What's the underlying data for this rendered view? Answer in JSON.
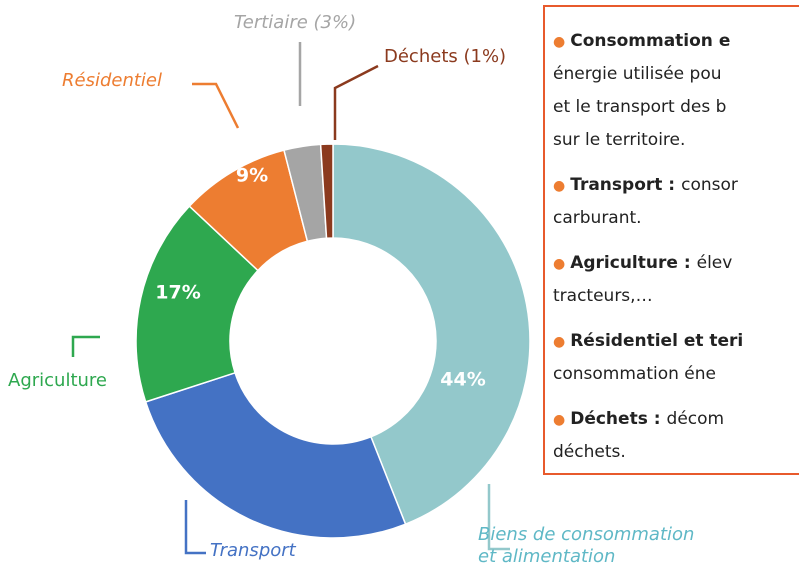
{
  "chart_data": {
    "type": "donut",
    "categories": [
      "Biens de consommation\net alimentation",
      "Transport",
      "Agriculture",
      "Résidentiel",
      "Tertiaire (3%)",
      "Déchets (1%)"
    ],
    "values": [
      44,
      26,
      17,
      9,
      3,
      1
    ],
    "value_labels": [
      "44%",
      null,
      "17%",
      "9%",
      null,
      null
    ],
    "colors": [
      "#93c8cb",
      "#4472c4",
      "#2ea84f",
      "#ed7d31",
      "#a5a5a5",
      "#8b3a1e"
    ]
  },
  "text_box": {
    "items": [
      {
        "term": "Consommation e",
        "lines": [
          "énergie utilisée pou",
          "et le transport des b",
          "sur le territoire."
        ]
      },
      {
        "term": "Transport :",
        "text": "consor",
        "lines": [
          "carburant."
        ]
      },
      {
        "term": "Agriculture :",
        "text": "élev",
        "lines": [
          "tracteurs,…"
        ]
      },
      {
        "term": "Résidentiel et teri",
        "lines": [
          "consommation éne"
        ]
      },
      {
        "term": "Déchets :",
        "text": "décom",
        "lines": [
          "déchets."
        ]
      }
    ]
  }
}
